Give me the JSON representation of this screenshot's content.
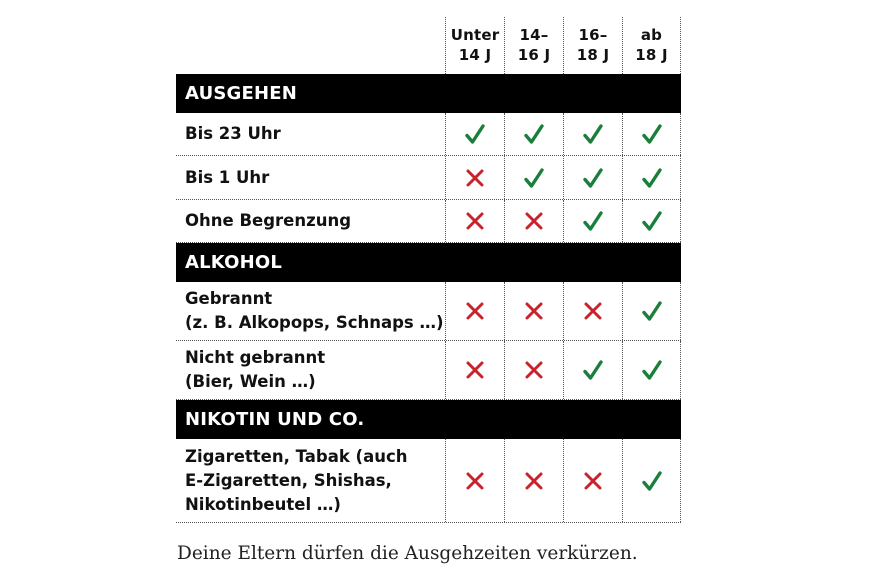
{
  "colors": {
    "check": "#1a7f3c",
    "cross": "#c8232c",
    "band": "#000000"
  },
  "columns": [
    {
      "line1": "Unter",
      "line2": "14 J"
    },
    {
      "line1": "14–",
      "line2": "16 J"
    },
    {
      "line1": "16–",
      "line2": "18 J"
    },
    {
      "line1": "ab",
      "line2": "18 J"
    }
  ],
  "sections": [
    {
      "title": "AUSGEHEN",
      "rows": [
        {
          "label": [
            "Bis 23 Uhr"
          ],
          "values": [
            "check",
            "check",
            "check",
            "check"
          ]
        },
        {
          "label": [
            "Bis 1 Uhr"
          ],
          "values": [
            "cross",
            "check",
            "check",
            "check"
          ]
        },
        {
          "label": [
            "Ohne Begrenzung"
          ],
          "values": [
            "cross",
            "cross",
            "check",
            "check"
          ]
        }
      ]
    },
    {
      "title": "ALKOHOL",
      "rows": [
        {
          "label": [
            "Gebrannt",
            "(z. B. Alkopops, Schnaps …)"
          ],
          "values": [
            "cross",
            "cross",
            "cross",
            "check"
          ]
        },
        {
          "label": [
            "Nicht gebrannt",
            "(Bier, Wein …)"
          ],
          "values": [
            "cross",
            "cross",
            "check",
            "check"
          ]
        }
      ]
    },
    {
      "title": "NIKOTIN UND CO.",
      "rows": [
        {
          "label": [
            "Zigaretten, Tabak (auch",
            "E-Zigaretten, Shishas,",
            "Nikotinbeutel …)"
          ],
          "values": [
            "cross",
            "cross",
            "cross",
            "check"
          ]
        }
      ]
    }
  ],
  "icons": {
    "check": "check-icon",
    "cross": "cross-icon"
  },
  "footnote": "Deine Eltern dürfen die Ausgehzeiten verkürzen."
}
